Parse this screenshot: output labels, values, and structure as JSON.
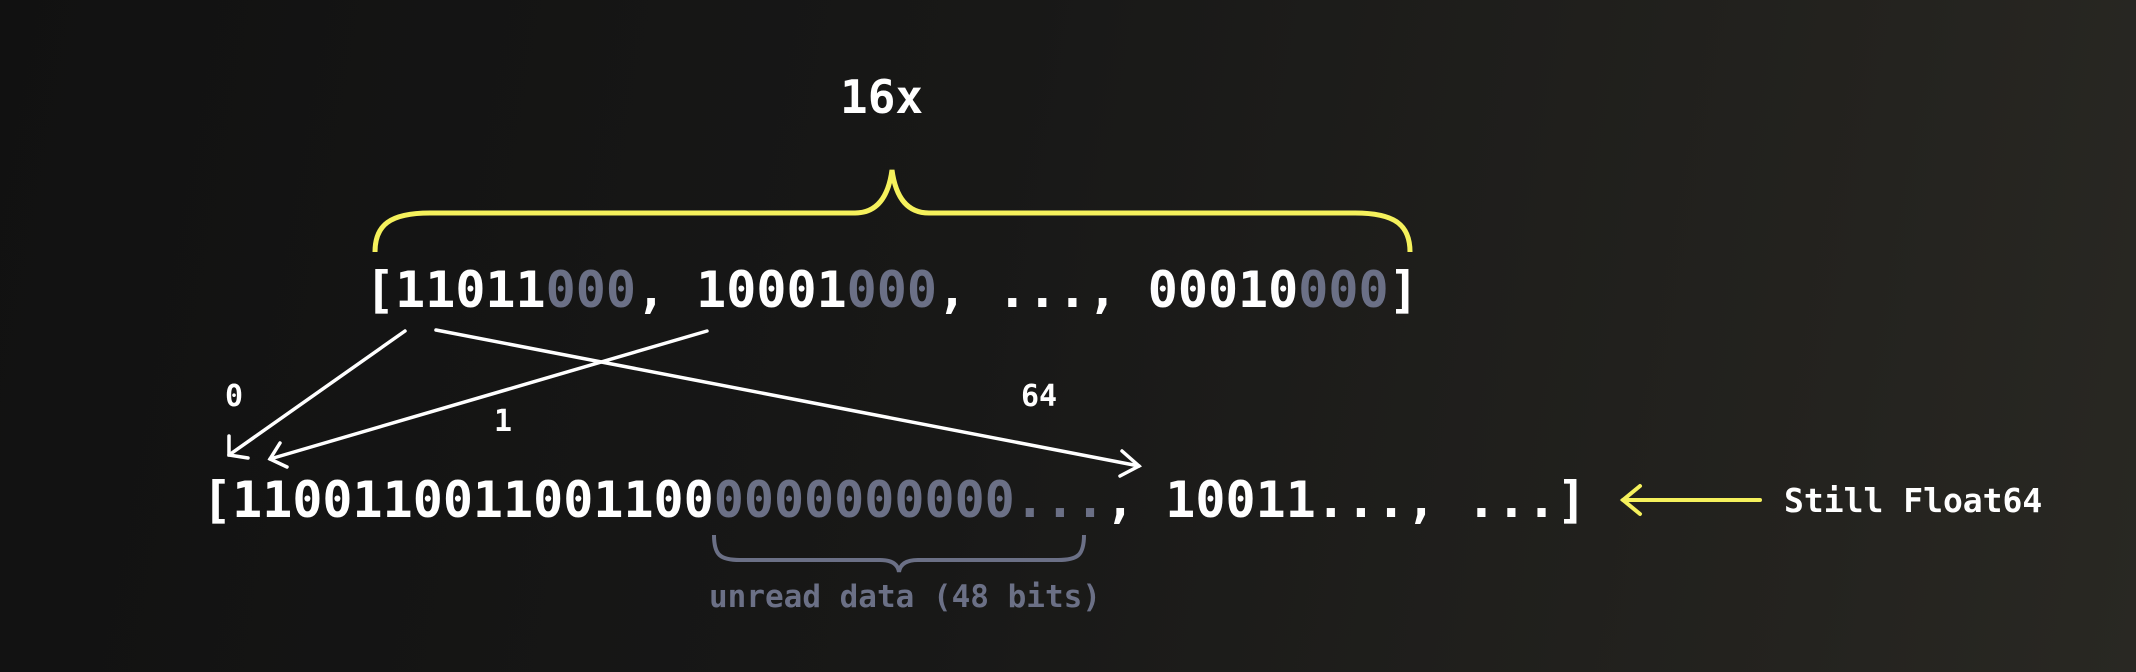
{
  "multiplier_label": "16x",
  "top_array": {
    "open": "[",
    "items": [
      {
        "read": "11011",
        "unread": "000"
      },
      {
        "read": "10001",
        "unread": "000"
      },
      {
        "read": "00010",
        "unread": "000"
      }
    ],
    "separator": ", ",
    "ellipsis": "...",
    "close": "]"
  },
  "index_labels": [
    "0",
    "1",
    "64"
  ],
  "bottom_array": {
    "open": "[",
    "read": "1100110011001100",
    "unread": "0000000000...",
    "rest": ", 10011..., ...",
    "close": "]"
  },
  "unread_label": "unread data (48 bits)",
  "type_label": "Still Float64",
  "colors": {
    "accent": "#f5f15c",
    "muted": "#6b7086",
    "text": "#ffffff"
  }
}
